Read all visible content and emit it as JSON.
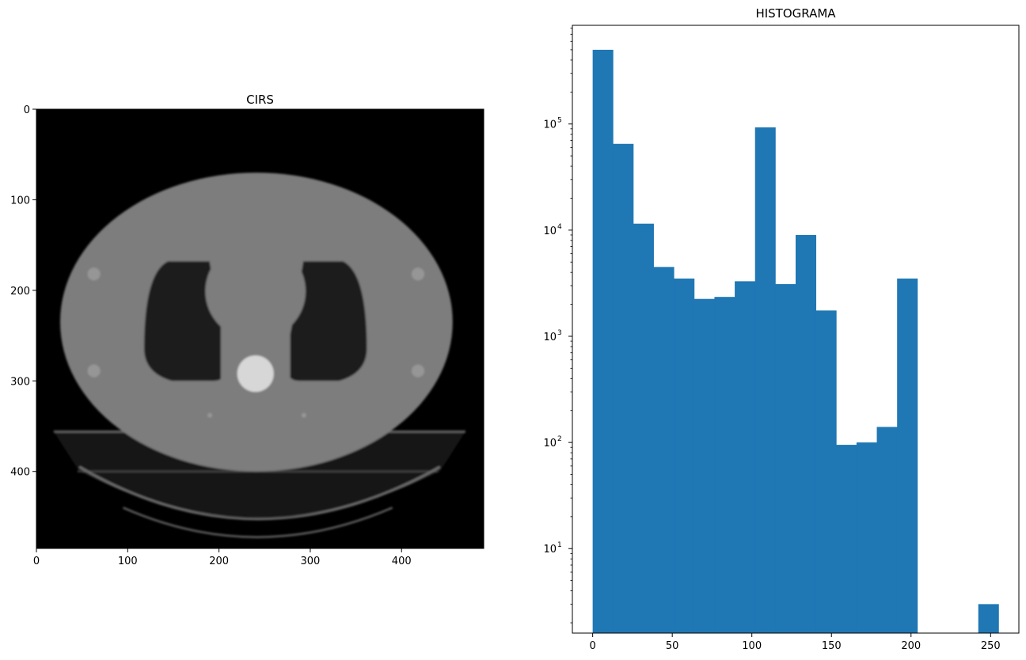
{
  "chart_data": [
    {
      "type": "image",
      "title": "CIRS",
      "colormap": "gray",
      "xlim": [
        0,
        490
      ],
      "ylim": [
        485,
        0
      ],
      "xticks": [
        0,
        100,
        200,
        300,
        400
      ],
      "yticks": [
        0,
        100,
        200,
        300,
        400
      ],
      "phantom": {
        "body_ellipse": {
          "cx": 241,
          "cy": 235,
          "rx": 215,
          "ry": 165,
          "gray": 125
        },
        "lung_left": {
          "x": [
            118,
            207
          ],
          "y": [
            168,
            300
          ],
          "gray": 30
        },
        "lung_right": {
          "x": [
            275,
            362
          ],
          "y": [
            168,
            300
          ],
          "gray": 30
        },
        "heart": {
          "cx": 240,
          "cy": 201,
          "rx": 67,
          "ry": 66,
          "gray": 125
        },
        "spine": {
          "cx": 240,
          "cy": 292,
          "r": 20,
          "gray": 215
        },
        "fiducials": [
          {
            "cx": 63,
            "cy": 182,
            "r": 7
          },
          {
            "cx": 418,
            "cy": 182,
            "r": 7
          },
          {
            "cx": 63,
            "cy": 289,
            "r": 7
          },
          {
            "cx": 418,
            "cy": 289,
            "r": 7
          }
        ],
        "table_top": {
          "x": [
            139,
            343
          ],
          "y": [
            338,
            358
          ],
          "gray": 170
        },
        "couch": {
          "top_y": 356,
          "x": [
            19,
            470
          ],
          "bottom_y": 475
        }
      }
    },
    {
      "type": "histogram",
      "title": "HISTOGRAMA",
      "bin_edges": [
        0,
        12.75,
        25.5,
        38.25,
        51,
        63.75,
        76.5,
        89.25,
        102,
        114.75,
        127.5,
        140.25,
        153,
        165.75,
        178.5,
        191.25,
        204,
        216.75,
        229.5,
        242.25,
        255
      ],
      "counts": [
        500000,
        65000,
        11500,
        4500,
        3500,
        2250,
        2350,
        3300,
        93000,
        3100,
        9000,
        1750,
        95,
        100,
        140,
        3500,
        0,
        0,
        0,
        3
      ],
      "color": "#1f77b4",
      "xlim": [
        -12.75,
        267.75
      ],
      "ylim": [
        1.6,
        850000
      ],
      "yscale": "log",
      "xticks": [
        0,
        50,
        100,
        150,
        200,
        250
      ],
      "yticks": [
        {
          "value": 10,
          "mantissa": "10",
          "exp": "1"
        },
        {
          "value": 100,
          "mantissa": "10",
          "exp": "2"
        },
        {
          "value": 1000,
          "mantissa": "10",
          "exp": "3"
        },
        {
          "value": 10000,
          "mantissa": "10",
          "exp": "4"
        },
        {
          "value": 100000,
          "mantissa": "10",
          "exp": "5"
        }
      ]
    }
  ]
}
